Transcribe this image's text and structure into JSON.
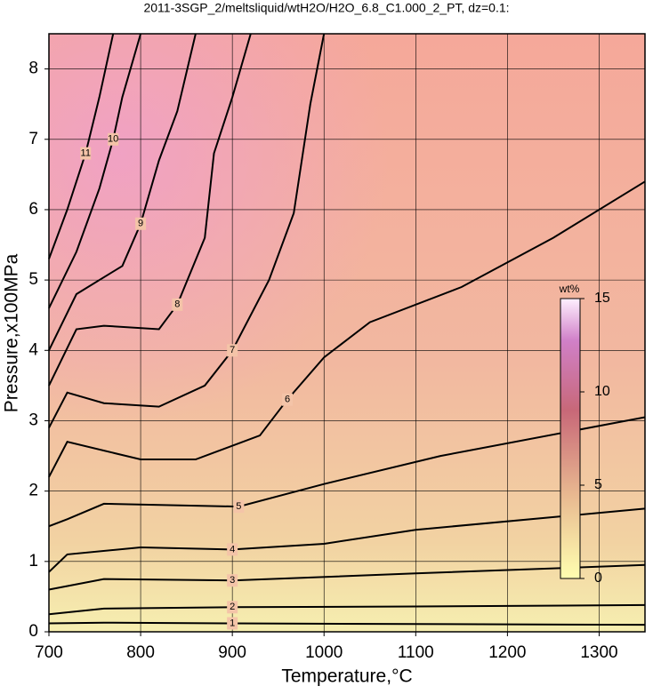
{
  "chart_data": {
    "type": "contour",
    "title": "2011-3SGP_2/meltsliquid/wtH2O/H2O_6.8_C1.000_2_PT, dz=0.1:",
    "xlabel": "Temperature,°C",
    "ylabel": "Pressure,x100MPa",
    "xlim": [
      700,
      1350
    ],
    "ylim": [
      0,
      8.5
    ],
    "xticks": [
      700,
      800,
      900,
      1000,
      1100,
      1200,
      1300
    ],
    "yticks": [
      0,
      1,
      2,
      3,
      4,
      5,
      6,
      7,
      8
    ],
    "grid": true,
    "colorbar": {
      "label": "wt%",
      "lim": [
        0,
        15
      ],
      "ticks": [
        0,
        5,
        10,
        15
      ]
    },
    "contours": [
      {
        "level": 1,
        "x": [
          700,
          760,
          900,
          1100,
          1350
        ],
        "y": [
          0.12,
          0.13,
          0.12,
          0.11,
          0.1
        ]
      },
      {
        "level": 2,
        "x": [
          700,
          760,
          900,
          1100,
          1350
        ],
        "y": [
          0.25,
          0.33,
          0.35,
          0.36,
          0.38
        ]
      },
      {
        "level": 3,
        "x": [
          700,
          760,
          900,
          1100,
          1350
        ],
        "y": [
          0.6,
          0.75,
          0.73,
          0.83,
          0.95
        ]
      },
      {
        "level": 4,
        "x": [
          700,
          720,
          800,
          900,
          1000,
          1100,
          1350
        ],
        "y": [
          0.85,
          1.1,
          1.2,
          1.17,
          1.25,
          1.45,
          1.75
        ]
      },
      {
        "level": 5,
        "x": [
          700,
          720,
          760,
          907,
          1000,
          1127,
          1350
        ],
        "y": [
          1.5,
          1.6,
          1.82,
          1.78,
          2.1,
          2.5,
          3.05
        ]
      },
      {
        "level": 6,
        "x": [
          700,
          720,
          800,
          860,
          930,
          960,
          1000,
          1050,
          1150,
          1250,
          1350
        ],
        "y": [
          2.2,
          2.7,
          2.45,
          2.45,
          2.79,
          3.3,
          3.9,
          4.4,
          4.9,
          5.6,
          6.4
        ]
      },
      {
        "level": 7,
        "x": [
          700,
          720,
          760,
          820,
          870,
          900,
          940,
          967,
          985,
          1000
        ],
        "y": [
          2.9,
          3.4,
          3.25,
          3.2,
          3.5,
          4.0,
          5.0,
          5.95,
          7.5,
          8.5
        ]
      },
      {
        "level": 8,
        "x": [
          700,
          730,
          760,
          820,
          840,
          870,
          880,
          900,
          920
        ],
        "y": [
          3.5,
          4.3,
          4.35,
          4.3,
          4.65,
          5.6,
          6.8,
          7.6,
          8.5
        ]
      },
      {
        "level": 9,
        "x": [
          700,
          730,
          780,
          800,
          820,
          840,
          860
        ],
        "y": [
          4.0,
          4.8,
          5.2,
          5.8,
          6.7,
          7.4,
          8.5
        ]
      },
      {
        "level": 10,
        "x": [
          700,
          730,
          755,
          770,
          780,
          800
        ],
        "y": [
          4.6,
          5.4,
          6.3,
          7.0,
          7.6,
          8.5
        ]
      },
      {
        "level": 11,
        "x": [
          700,
          720,
          740,
          755,
          770
        ],
        "y": [
          5.3,
          6.0,
          6.8,
          7.6,
          8.5
        ]
      }
    ]
  }
}
